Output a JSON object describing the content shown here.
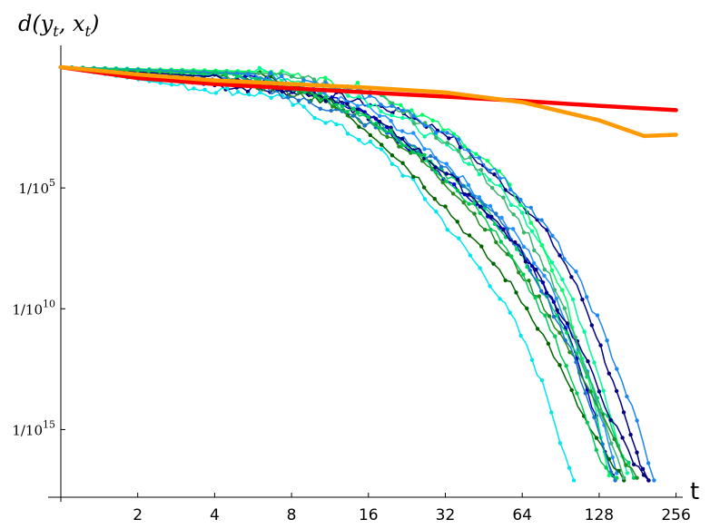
{
  "chart_data": {
    "type": "line",
    "title": "",
    "ylabel": "d(y_t, x_t)",
    "xlabel": "t",
    "x_scale": "log2",
    "y_scale": "log10",
    "xlim": [
      1,
      272
    ],
    "ylim": [
      -17.8,
      0.9
    ],
    "x_ticks": [
      {
        "value": 2,
        "label": "2"
      },
      {
        "value": 4,
        "label": "4"
      },
      {
        "value": 8,
        "label": "8"
      },
      {
        "value": 16,
        "label": "16"
      },
      {
        "value": 32,
        "label": "32"
      },
      {
        "value": 64,
        "label": "64"
      },
      {
        "value": 128,
        "label": "128"
      },
      {
        "value": 256,
        "label": "256"
      }
    ],
    "y_ticks": [
      {
        "value": -5,
        "label_base": "1/10",
        "label_exp": "5"
      },
      {
        "value": -10,
        "label_base": "1/10",
        "label_exp": "10"
      },
      {
        "value": -15,
        "label_base": "1/10",
        "label_exp": "15"
      }
    ],
    "grid": false,
    "legend": "none",
    "smooth_series": [
      {
        "color": "#ff0000",
        "x": [
          1,
          2,
          4,
          8,
          16,
          32,
          64,
          128,
          256
        ],
        "y": [
          0,
          -0.45,
          -0.7,
          -0.88,
          -1.05,
          -1.22,
          -1.4,
          -1.6,
          -1.78
        ]
      },
      {
        "color": "#ff9900",
        "x": [
          1,
          2,
          4,
          8,
          16,
          32,
          64,
          128,
          192,
          256
        ],
        "y": [
          0,
          -0.3,
          -0.55,
          -0.7,
          -0.85,
          -1.05,
          -1.45,
          -2.2,
          -2.85,
          -2.8
        ]
      }
    ],
    "series": [
      {
        "color": "#000080",
        "x": [
          1,
          4,
          12,
          22,
          33,
          45,
          64,
          80,
          95,
          110,
          125,
          140,
          155,
          170,
          185,
          200
        ],
        "y": [
          0,
          -0.75,
          -1.2,
          -1.9,
          -2.8,
          -4.1,
          -5.6,
          -6.9,
          -8.2,
          -9.6,
          -11.1,
          -12.6,
          -14.0,
          -15.3,
          -16.3,
          -17.1
        ]
      },
      {
        "color": "#0000cd",
        "x": [
          1,
          5,
          14,
          22,
          30,
          40,
          55,
          70,
          85,
          100,
          115,
          130,
          145
        ],
        "y": [
          0,
          -0.3,
          -1.6,
          -3.1,
          -4.3,
          -5.4,
          -6.7,
          -8.2,
          -9.8,
          -11.5,
          -13.3,
          -15.2,
          -16.9
        ]
      },
      {
        "color": "#1e90ff",
        "x": [
          1,
          3,
          8,
          16,
          24,
          34,
          48,
          62,
          78,
          92,
          106,
          120,
          134,
          150
        ],
        "y": [
          0,
          -0.2,
          -0.8,
          -1.7,
          -2.9,
          -4.2,
          -5.8,
          -7.1,
          -8.6,
          -10.1,
          -11.6,
          -13.1,
          -14.9,
          -16.8
        ]
      },
      {
        "color": "#00e5ee",
        "x": [
          1,
          3,
          7,
          12,
          18,
          24,
          31,
          40,
          50,
          60,
          70,
          80,
          90,
          102
        ],
        "y": [
          0,
          -0.8,
          -1.2,
          -2.4,
          -3.5,
          -4.8,
          -6.3,
          -7.8,
          -9.2,
          -10.6,
          -12.1,
          -13.6,
          -15.4,
          -17.1
        ]
      },
      {
        "color": "#00fa9a",
        "x": [
          1,
          6,
          14,
          24,
          36,
          50,
          64,
          80,
          96,
          112,
          128,
          144,
          165
        ],
        "y": [
          0,
          -0.2,
          -1.1,
          -2.4,
          -3.6,
          -4.8,
          -6.1,
          -7.6,
          -9.2,
          -10.9,
          -12.7,
          -14.6,
          -16.8
        ]
      },
      {
        "color": "#00cd66",
        "x": [
          1,
          5,
          12,
          20,
          28,
          38,
          50,
          64,
          80,
          100,
          120,
          145,
          175
        ],
        "y": [
          0,
          -0.3,
          -1.4,
          -2.7,
          -3.9,
          -5.0,
          -6.4,
          -7.9,
          -9.6,
          -11.4,
          -13.1,
          -15.1,
          -17.0
        ]
      },
      {
        "color": "#00ff66",
        "x": [
          1,
          7,
          16,
          26,
          38,
          52,
          66,
          80,
          96,
          110,
          125,
          140
        ],
        "y": [
          0,
          -0.2,
          -0.9,
          -2.0,
          -3.1,
          -4.4,
          -5.9,
          -7.8,
          -9.9,
          -12.0,
          -14.4,
          -16.9
        ]
      },
      {
        "color": "#006400",
        "x": [
          1,
          6,
          12,
          18,
          24,
          32,
          42,
          55,
          70,
          85,
          100,
          118,
          140,
          160
        ],
        "y": [
          0,
          -0.3,
          -1.6,
          -3.1,
          -4.4,
          -5.8,
          -7.3,
          -8.7,
          -10.3,
          -11.9,
          -13.5,
          -15.0,
          -16.3,
          -17.1
        ]
      },
      {
        "color": "#228b22",
        "x": [
          1,
          4,
          10,
          18,
          26,
          36,
          48,
          62,
          78,
          94,
          112,
          132,
          155,
          180
        ],
        "y": [
          0,
          -0.4,
          -1.3,
          -2.6,
          -3.9,
          -5.3,
          -6.9,
          -8.4,
          -9.9,
          -11.4,
          -12.9,
          -14.5,
          -16.0,
          -17.0
        ]
      },
      {
        "color": "#1874cd",
        "x": [
          1,
          5,
          12,
          22,
          34,
          48,
          62,
          76,
          90,
          104,
          118,
          132,
          148
        ],
        "y": [
          0,
          -0.6,
          -1.8,
          -3.0,
          -4.4,
          -5.9,
          -7.5,
          -9.1,
          -10.7,
          -12.3,
          -14.0,
          -15.6,
          -17.1
        ]
      },
      {
        "color": "#000080",
        "x": [
          1,
          4,
          9,
          16,
          24,
          34,
          46,
          60,
          76,
          92,
          110,
          128,
          150,
          175,
          200
        ],
        "y": [
          0,
          -0.4,
          -1.0,
          -2.0,
          -3.3,
          -4.6,
          -5.9,
          -7.3,
          -8.8,
          -10.3,
          -11.8,
          -13.4,
          -15.0,
          -16.4,
          -17.1
        ]
      },
      {
        "color": "#3cb371",
        "x": [
          1,
          8,
          18,
          28,
          40,
          54,
          68,
          82,
          98,
          115,
          135,
          160
        ],
        "y": [
          0,
          -0.3,
          -1.3,
          -2.6,
          -3.9,
          -5.4,
          -7.0,
          -8.7,
          -10.6,
          -12.7,
          -14.9,
          -17.0
        ]
      },
      {
        "color": "#1c86ee",
        "x": [
          1,
          6,
          14,
          24,
          36,
          50,
          66,
          84,
          104,
          126,
          150,
          180,
          210
        ],
        "y": [
          0,
          -0.3,
          -1.0,
          -2.0,
          -3.1,
          -4.3,
          -5.6,
          -7.0,
          -8.6,
          -10.4,
          -12.4,
          -14.7,
          -17.1
        ]
      },
      {
        "color": "#00c957",
        "x": [
          1,
          4,
          9,
          16,
          24,
          34,
          46,
          58,
          72,
          86,
          100,
          115,
          130,
          150
        ],
        "y": [
          0,
          -0.3,
          -1.0,
          -2.1,
          -3.4,
          -4.8,
          -6.3,
          -7.9,
          -9.6,
          -11.3,
          -13.0,
          -14.7,
          -16.2,
          -17.0
        ]
      }
    ]
  }
}
